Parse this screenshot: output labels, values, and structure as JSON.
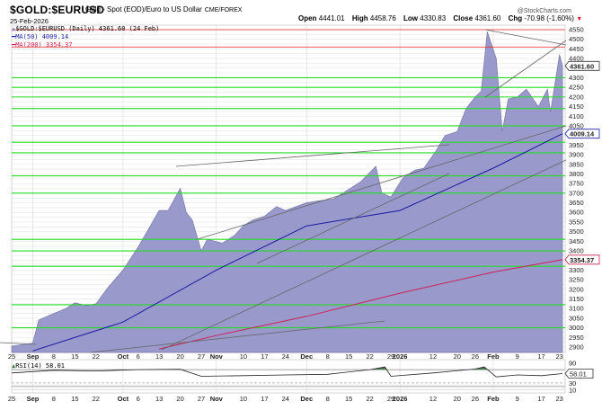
{
  "header": {
    "symbol": "$GOLD:$EURUSD",
    "description": "Gold - Spot (EOD)/Euro to US Dollar",
    "exchange": "CME/FOREX",
    "date": "25-Feb-2026",
    "open_label": "Open",
    "open": "4441.01",
    "high_label": "High",
    "high": "4458.76",
    "low_label": "Low",
    "low": "4330.83",
    "close_label": "Close",
    "close": "4361.60",
    "chg_label": "Chg",
    "chg": "-70.98 (-1.60%)",
    "chg_arrow": "▼",
    "watermark": "@StockCharts.com"
  },
  "legend": {
    "price": "$GOLD:$EURUSD (Daily) 4361.60 (24 Feb)",
    "ma50": "MA(50) 4009.14",
    "ma200": "MA(200) 3354.37",
    "rsi": "RSI(14) 58.01"
  },
  "price_tags": {
    "last": "4361.60",
    "ma50": "4009.14",
    "ma200": "3354.37",
    "rsi": "58.01"
  },
  "colors": {
    "area_fill": "#9999cc",
    "area_line": "#7777aa",
    "ma50": "#1a1aa0",
    "ma200": "#cc2255",
    "support_green": "#22dd22",
    "resistance_red": "#ee2222",
    "trendline": "#666666",
    "rsi_fill": "#4a7a4a"
  },
  "chart_data": [
    {
      "type": "area",
      "title": "$GOLD:$EURUSD Gold - Spot (EOD)/Euro to US Dollar (Daily)",
      "xlabel": "",
      "ylabel": "",
      "ylim": [
        2880,
        4560
      ],
      "grid": true,
      "legend_position": "top-left",
      "x_tick_labels": [
        "25",
        "Sep",
        "8",
        "15",
        "22",
        "Oct",
        "6",
        "13",
        "20",
        "27",
        "Nov",
        "10",
        "17",
        "24",
        "Dec",
        "8",
        "15",
        "22",
        "29",
        "2026",
        "12",
        "20",
        "26",
        "Feb",
        "9",
        "17",
        "23"
      ],
      "y_tick_labels": [
        "4550",
        "4500",
        "4450",
        "4400",
        "4300",
        "4250",
        "4200",
        "4150",
        "4100",
        "4050",
        "3950",
        "3900",
        "3850",
        "3800",
        "3750",
        "3700",
        "3650",
        "3600",
        "3550",
        "3500",
        "3450",
        "3400",
        "3300",
        "3250",
        "3200",
        "3150",
        "3100",
        "3050",
        "3000",
        "2950",
        "2900"
      ],
      "series": [
        {
          "name": "$GOLD:$EURUSD (Daily)",
          "last": 4361.6,
          "x": [
            "Aug 25",
            "Sep 1",
            "Sep 3",
            "Sep 8",
            "Sep 12",
            "Sep 15",
            "Sep 19",
            "Sep 22",
            "Sep 26",
            "Oct 1",
            "Oct 6",
            "Oct 9",
            "Oct 13",
            "Oct 16",
            "Oct 20",
            "Oct 22",
            "Oct 24",
            "Oct 27",
            "Oct 29",
            "Nov 3",
            "Nov 7",
            "Nov 10",
            "Nov 13",
            "Nov 17",
            "Nov 21",
            "Nov 24",
            "Dec 1",
            "Dec 5",
            "Dec 10",
            "Dec 15",
            "Dec 19",
            "Dec 24",
            "Dec 26",
            "Dec 29",
            "Jan 2",
            "Jan 6",
            "Jan 9",
            "Jan 13",
            "Jan 16",
            "Jan 20",
            "Jan 23",
            "Jan 26",
            "Jan 28",
            "Jan 30",
            "Feb 2",
            "Feb 4",
            "Feb 6",
            "Feb 9",
            "Feb 12",
            "Feb 16",
            "Feb 19",
            "Feb 20",
            "Feb 23",
            "Feb 24"
          ],
          "values": [
            2905,
            2920,
            3040,
            3075,
            3100,
            3130,
            3115,
            3125,
            3210,
            3300,
            3420,
            3500,
            3610,
            3610,
            3725,
            3600,
            3560,
            3400,
            3460,
            3440,
            3480,
            3530,
            3560,
            3580,
            3630,
            3610,
            3650,
            3660,
            3670,
            3720,
            3760,
            3840,
            3700,
            3680,
            3780,
            3820,
            3830,
            3920,
            4000,
            4020,
            4140,
            4200,
            4230,
            4540,
            4400,
            4020,
            4190,
            4200,
            4240,
            4150,
            4240,
            4120,
            4420,
            4361.6
          ]
        },
        {
          "name": "MA(50)",
          "last": 4009.14,
          "x": [
            "Sep 1",
            "Oct 1",
            "Nov 1",
            "Dec 1",
            "Jan 1",
            "Feb 1",
            "Feb 24"
          ],
          "values": [
            2880,
            3030,
            3300,
            3530,
            3610,
            3830,
            4009.14
          ]
        },
        {
          "name": "MA(200)",
          "last": 3354.37,
          "x": [
            "Oct 13",
            "Nov 1",
            "Dec 1",
            "Jan 1",
            "Feb 1",
            "Feb 24"
          ],
          "values": [
            2890,
            2960,
            3060,
            3180,
            3290,
            3354.37
          ]
        }
      ],
      "horizontal_lines": {
        "red": [
          4550,
          4460
        ],
        "green": [
          4300,
          4250,
          4200,
          4140,
          4050,
          3965,
          3910,
          3790,
          3700,
          3460,
          3400,
          3320,
          3120,
          3000
        ]
      }
    },
    {
      "type": "line",
      "title": "RSI(14)",
      "ylim": [
        0,
        100
      ],
      "y_tick_labels": [
        "90",
        "30",
        "10"
      ],
      "series": [
        {
          "name": "RSI(14)",
          "last": 58.01,
          "x": [
            "Aug 25",
            "Sep 8",
            "Sep 22",
            "Oct 6",
            "Oct 20",
            "Oct 27",
            "Nov 10",
            "Nov 24",
            "Dec 8",
            "Dec 22",
            "Dec 27",
            "Dec 29",
            "Jan 12",
            "Jan 26",
            "Jan 29",
            "Feb 2",
            "Feb 9",
            "Feb 17",
            "Feb 24"
          ],
          "values": [
            60,
            68,
            66,
            70,
            71,
            50,
            52,
            54,
            56,
            70,
            78,
            50,
            60,
            72,
            78,
            48,
            54,
            52,
            58.01
          ]
        }
      ]
    }
  ]
}
